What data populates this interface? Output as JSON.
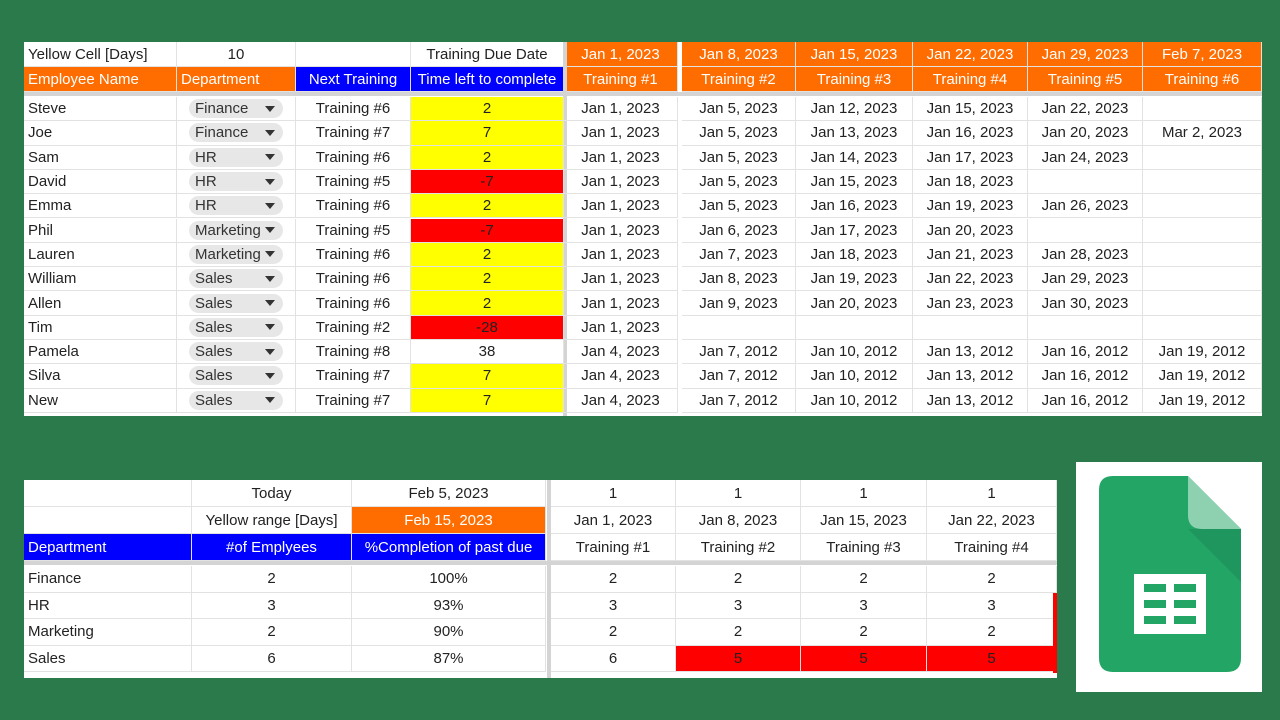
{
  "top_table": {
    "meta": {
      "yellow_label": "Yellow Cell [Days]",
      "yellow_value": "10",
      "due_label": "Training Due Date",
      "due_dates": [
        "Jan 1, 2023",
        "Jan 8, 2023",
        "Jan 15, 2023",
        "Jan 22, 2023",
        "Jan 29, 2023",
        "Feb 7, 2023"
      ]
    },
    "headers": {
      "name": "Employee Name",
      "department": "Department",
      "next": "Next Training",
      "time": "Time left to complete",
      "trainings": [
        "Training #1",
        "Training #2",
        "Training #3",
        "Training #4",
        "Training #5",
        "Training #6"
      ]
    },
    "rows": [
      {
        "name": "Steve",
        "dept": "Finance",
        "next": "Training #6",
        "time": "2",
        "status": "yellow",
        "dates": [
          "Jan 1, 2023",
          "Jan 5, 2023",
          "Jan 12, 2023",
          "Jan 15, 2023",
          "Jan 22, 2023",
          ""
        ]
      },
      {
        "name": "Joe",
        "dept": "Finance",
        "next": "Training #7",
        "time": "7",
        "status": "yellow",
        "dates": [
          "Jan 1, 2023",
          "Jan 5, 2023",
          "Jan 13, 2023",
          "Jan 16, 2023",
          "Jan 20, 2023",
          "Mar 2, 2023"
        ]
      },
      {
        "name": "Sam",
        "dept": "HR",
        "next": "Training #6",
        "time": "2",
        "status": "yellow",
        "dates": [
          "Jan 1, 2023",
          "Jan 5, 2023",
          "Jan 14, 2023",
          "Jan 17, 2023",
          "Jan 24, 2023",
          ""
        ]
      },
      {
        "name": "David",
        "dept": "HR",
        "next": "Training #5",
        "time": "-7",
        "status": "red",
        "dates": [
          "Jan 1, 2023",
          "Jan 5, 2023",
          "Jan 15, 2023",
          "Jan 18, 2023",
          "",
          ""
        ]
      },
      {
        "name": "Emma",
        "dept": "HR",
        "next": "Training #6",
        "time": "2",
        "status": "yellow",
        "dates": [
          "Jan 1, 2023",
          "Jan 5, 2023",
          "Jan 16, 2023",
          "Jan 19, 2023",
          "Jan 26, 2023",
          ""
        ]
      },
      {
        "name": "Phil",
        "dept": "Marketing",
        "next": "Training #5",
        "time": "-7",
        "status": "red",
        "dates": [
          "Jan 1, 2023",
          "Jan 6, 2023",
          "Jan 17, 2023",
          "Jan 20, 2023",
          "",
          ""
        ]
      },
      {
        "name": "Lauren",
        "dept": "Marketing",
        "next": "Training #6",
        "time": "2",
        "status": "yellow",
        "dates": [
          "Jan 1, 2023",
          "Jan 7, 2023",
          "Jan 18, 2023",
          "Jan 21, 2023",
          "Jan 28, 2023",
          ""
        ]
      },
      {
        "name": "William",
        "dept": "Sales",
        "next": "Training #6",
        "time": "2",
        "status": "yellow",
        "dates": [
          "Jan 1, 2023",
          "Jan 8, 2023",
          "Jan 19, 2023",
          "Jan 22, 2023",
          "Jan 29, 2023",
          ""
        ]
      },
      {
        "name": "Allen",
        "dept": "Sales",
        "next": "Training #6",
        "time": "2",
        "status": "yellow",
        "dates": [
          "Jan 1, 2023",
          "Jan 9, 2023",
          "Jan 20, 2023",
          "Jan 23, 2023",
          "Jan 30, 2023",
          ""
        ]
      },
      {
        "name": "Tim",
        "dept": "Sales",
        "next": "Training #2",
        "time": "-28",
        "status": "red",
        "dates": [
          "Jan 1, 2023",
          "",
          "",
          "",
          "",
          ""
        ]
      },
      {
        "name": "Pamela",
        "dept": "Sales",
        "next": "Training #8",
        "time": "38",
        "status": "none",
        "dates": [
          "Jan 4, 2023",
          "Jan 7, 2012",
          "Jan 10, 2012",
          "Jan 13, 2012",
          "Jan 16, 2012",
          "Jan 19, 2012"
        ]
      },
      {
        "name": "Silva",
        "dept": "Sales",
        "next": "Training #7",
        "time": "7",
        "status": "yellow",
        "dates": [
          "Jan 4, 2023",
          "Jan 7, 2012",
          "Jan 10, 2012",
          "Jan 13, 2012",
          "Jan 16, 2012",
          "Jan 19, 2012"
        ]
      },
      {
        "name": "New",
        "dept": "Sales",
        "next": "Training #7",
        "time": "7",
        "status": "yellow",
        "dates": [
          "Jan 4, 2023",
          "Jan 7, 2012",
          "Jan 10, 2012",
          "Jan 13, 2012",
          "Jan 16, 2012",
          "Jan 19, 2012"
        ]
      }
    ]
  },
  "bottom_table": {
    "today_label": "Today",
    "today_value": "Feb 5, 2023",
    "yellow_range_label": "Yellow range [Days]",
    "yellow_range_value": "Feb 15, 2023",
    "top_counts": [
      "1",
      "1",
      "1",
      "1"
    ],
    "due_dates": [
      "Jan 1, 2023",
      "Jan 8, 2023",
      "Jan 15, 2023",
      "Jan 22, 2023"
    ],
    "headers": {
      "department": "Department",
      "employees": "#of Emplyees",
      "completion": "%Completion of past due",
      "trainings": [
        "Training #1",
        "Training #2",
        "Training #3",
        "Training #4"
      ]
    },
    "rows": [
      {
        "dept": "Finance",
        "employees": "2",
        "completion": "100%",
        "counts": [
          "2",
          "2",
          "2",
          "2"
        ],
        "red": [
          false,
          false,
          false,
          false
        ]
      },
      {
        "dept": "HR",
        "employees": "3",
        "completion": "93%",
        "counts": [
          "3",
          "3",
          "3",
          "3"
        ],
        "red": [
          false,
          false,
          false,
          false
        ]
      },
      {
        "dept": "Marketing",
        "employees": "2",
        "completion": "90%",
        "counts": [
          "2",
          "2",
          "2",
          "2"
        ],
        "red": [
          false,
          false,
          false,
          false
        ]
      },
      {
        "dept": "Sales",
        "employees": "6",
        "completion": "87%",
        "counts": [
          "6",
          "5",
          "5",
          "5"
        ],
        "red": [
          false,
          true,
          true,
          true
        ]
      }
    ]
  },
  "colors": {
    "background": "#2b7a4b",
    "orange_header": "#ff6d01",
    "blue_header": "#0000ff",
    "yellow_status": "#ffff00",
    "red_status": "#ff0000",
    "sheets_green": "#23a566"
  },
  "logo": {
    "icon": "google-sheets-icon"
  }
}
